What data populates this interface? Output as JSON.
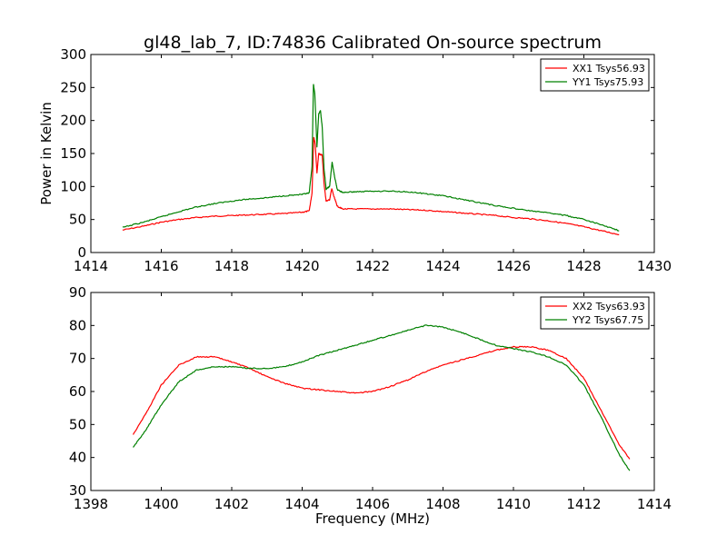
{
  "title": "gl48_lab_7, ID:74836 Calibrated On-source spectrum",
  "chart_data": [
    {
      "type": "line",
      "ylabel": "Power in Kelvin",
      "xlabel": "",
      "xlim": [
        1414,
        1430
      ],
      "ylim": [
        0,
        300
      ],
      "xticks": [
        "1414",
        "1416",
        "1418",
        "1420",
        "1422",
        "1424",
        "1426",
        "1428",
        "1430"
      ],
      "yticks": [
        "0",
        "50",
        "100",
        "150",
        "200",
        "250",
        "300"
      ],
      "grid": false,
      "legend_position": "top-right",
      "series": [
        {
          "name": "XX1 Tsys56.93",
          "color": "#ff0000",
          "points": [
            [
              1414.9,
              34
            ],
            [
              1415.5,
              40
            ],
            [
              1416,
              46
            ],
            [
              1416.5,
              50
            ],
            [
              1417,
              53
            ],
            [
              1417.5,
              55
            ],
            [
              1418,
              56
            ],
            [
              1418.5,
              57
            ],
            [
              1419,
              58
            ],
            [
              1419.5,
              59
            ],
            [
              1420,
              61
            ],
            [
              1420.2,
              63
            ],
            [
              1420.28,
              90
            ],
            [
              1420.33,
              175
            ],
            [
              1420.37,
              165
            ],
            [
              1420.42,
              120
            ],
            [
              1420.47,
              150
            ],
            [
              1420.52,
              148
            ],
            [
              1420.57,
              148
            ],
            [
              1420.62,
              105
            ],
            [
              1420.68,
              78
            ],
            [
              1420.78,
              80
            ],
            [
              1420.84,
              97
            ],
            [
              1420.9,
              85
            ],
            [
              1421,
              70
            ],
            [
              1421.15,
              66
            ],
            [
              1421.5,
              66
            ],
            [
              1422,
              66
            ],
            [
              1422.5,
              66
            ],
            [
              1423,
              65
            ],
            [
              1423.5,
              64
            ],
            [
              1424,
              62
            ],
            [
              1424.5,
              60
            ],
            [
              1425,
              58
            ],
            [
              1425.5,
              56
            ],
            [
              1426,
              53
            ],
            [
              1426.5,
              51
            ],
            [
              1427,
              48
            ],
            [
              1427.5,
              44
            ],
            [
              1428,
              39
            ],
            [
              1428.5,
              33
            ],
            [
              1429,
              27
            ]
          ]
        },
        {
          "name": "YY1 Tsys75.93",
          "color": "#008000",
          "points": [
            [
              1414.9,
              38
            ],
            [
              1415.5,
              46
            ],
            [
              1416,
              54
            ],
            [
              1416.5,
              62
            ],
            [
              1417,
              69
            ],
            [
              1417.5,
              74
            ],
            [
              1418,
              78
            ],
            [
              1418.5,
              81
            ],
            [
              1419,
              83
            ],
            [
              1419.5,
              86
            ],
            [
              1420,
              88
            ],
            [
              1420.2,
              90
            ],
            [
              1420.28,
              130
            ],
            [
              1420.32,
              255
            ],
            [
              1420.36,
              240
            ],
            [
              1420.42,
              160
            ],
            [
              1420.47,
              210
            ],
            [
              1420.52,
              215
            ],
            [
              1420.57,
              190
            ],
            [
              1420.62,
              128
            ],
            [
              1420.68,
              96
            ],
            [
              1420.78,
              100
            ],
            [
              1420.85,
              137
            ],
            [
              1420.92,
              115
            ],
            [
              1421,
              95
            ],
            [
              1421.15,
              91
            ],
            [
              1421.5,
              92
            ],
            [
              1422,
              93
            ],
            [
              1422.5,
              93
            ],
            [
              1423,
              92
            ],
            [
              1423.5,
              89
            ],
            [
              1424,
              86
            ],
            [
              1424.5,
              81
            ],
            [
              1425,
              76
            ],
            [
              1425.5,
              71
            ],
            [
              1426,
              67
            ],
            [
              1426.5,
              63
            ],
            [
              1427,
              60
            ],
            [
              1427.5,
              56
            ],
            [
              1428,
              50
            ],
            [
              1428.5,
              42
            ],
            [
              1429,
              33
            ]
          ]
        }
      ]
    },
    {
      "type": "line",
      "ylabel": "",
      "xlabel": "Frequency (MHz)",
      "xlim": [
        1398,
        1414
      ],
      "ylim": [
        30,
        90
      ],
      "xticks": [
        "1398",
        "1400",
        "1402",
        "1404",
        "1406",
        "1408",
        "1410",
        "1412",
        "1414"
      ],
      "yticks": [
        "30",
        "40",
        "50",
        "60",
        "70",
        "80",
        "90"
      ],
      "grid": false,
      "legend_position": "top-right",
      "series": [
        {
          "name": "XX2 Tsys63.93",
          "color": "#ff0000",
          "points": [
            [
              1399.2,
              47
            ],
            [
              1399.6,
              54
            ],
            [
              1400,
              62
            ],
            [
              1400.5,
              68
            ],
            [
              1401,
              70.5
            ],
            [
              1401.5,
              70.5
            ],
            [
              1402,
              69
            ],
            [
              1402.5,
              67
            ],
            [
              1403,
              64.5
            ],
            [
              1403.5,
              62.5
            ],
            [
              1404,
              61
            ],
            [
              1404.5,
              60.5
            ],
            [
              1405,
              60
            ],
            [
              1405.5,
              59.5
            ],
            [
              1406,
              60
            ],
            [
              1406.5,
              61.5
            ],
            [
              1407,
              63.5
            ],
            [
              1407.5,
              66
            ],
            [
              1408,
              68
            ],
            [
              1408.5,
              69.5
            ],
            [
              1409,
              71
            ],
            [
              1409.5,
              72.5
            ],
            [
              1410,
              73.5
            ],
            [
              1410.5,
              73.5
            ],
            [
              1411,
              72.5
            ],
            [
              1411.5,
              70
            ],
            [
              1412,
              64
            ],
            [
              1412.5,
              54
            ],
            [
              1413,
              44
            ],
            [
              1413.3,
              39.5
            ]
          ]
        },
        {
          "name": "YY2 Tsys67.75",
          "color": "#008000",
          "points": [
            [
              1399.2,
              43
            ],
            [
              1399.6,
              49
            ],
            [
              1400,
              56
            ],
            [
              1400.5,
              63
            ],
            [
              1401,
              66.5
            ],
            [
              1401.5,
              67.5
            ],
            [
              1402,
              67.5
            ],
            [
              1402.5,
              67
            ],
            [
              1403,
              67
            ],
            [
              1403.5,
              67.5
            ],
            [
              1404,
              69
            ],
            [
              1404.5,
              71
            ],
            [
              1405,
              72.5
            ],
            [
              1405.5,
              74
            ],
            [
              1406,
              75.5
            ],
            [
              1406.5,
              77
            ],
            [
              1407,
              78.5
            ],
            [
              1407.5,
              80
            ],
            [
              1408,
              79.5
            ],
            [
              1408.5,
              78
            ],
            [
              1409,
              76
            ],
            [
              1409.5,
              74
            ],
            [
              1410,
              73
            ],
            [
              1410.5,
              72
            ],
            [
              1411,
              70.5
            ],
            [
              1411.5,
              68
            ],
            [
              1412,
              62
            ],
            [
              1412.5,
              52
            ],
            [
              1413,
              41
            ],
            [
              1413.3,
              36
            ]
          ]
        }
      ]
    }
  ]
}
